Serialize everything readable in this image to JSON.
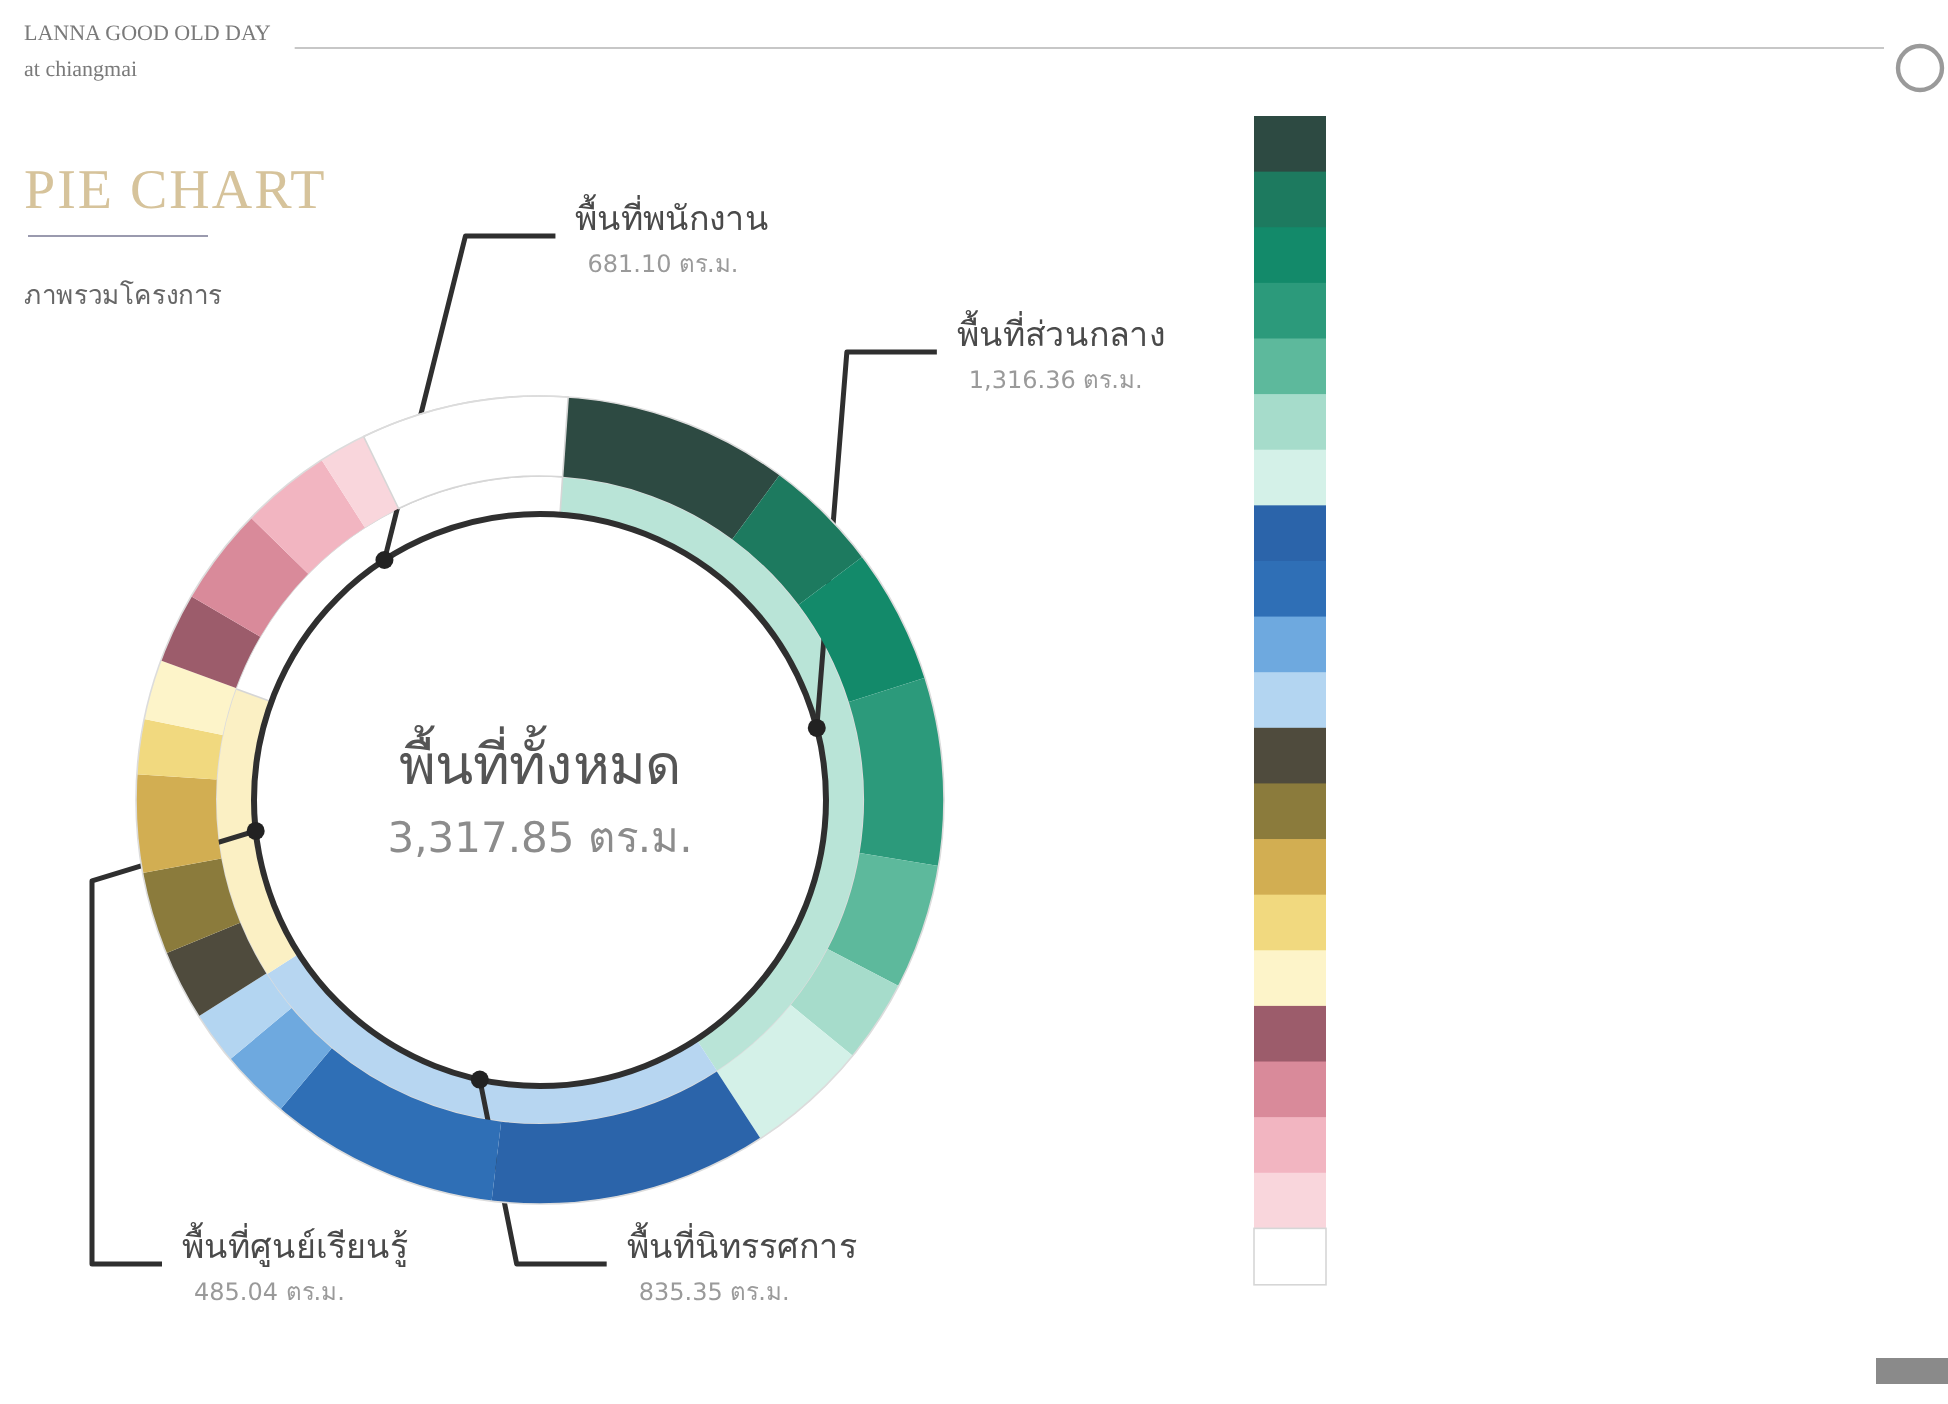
{
  "chart_data": [
    {
      "type": "donut",
      "title": "PIE CHART",
      "subtitle": "ภาพรวมโครงการ",
      "annotations": [
        "LANNA GOOD OLD DAY",
        "at chiangmai",
        "พื้นที่ทั้งหมด",
        "3,317.85 ตร.ม."
      ],
      "categories": [
        "พื้นที่ส่วนกลาง",
        "พื้นที่นิทรรศการ",
        "พื้นที่ศูนย์เรียนรู้",
        "พื้นที่พนักงาน"
      ],
      "values": [
        1316.36,
        835.35,
        485.04,
        681.1
      ],
      "value_labels": [
        "1,316.36 ตร.ม.",
        "835.35 ตร.ม.",
        "485.04 ตร.ม.",
        "681.10 ตร.ม."
      ],
      "colors": [
        "#b9e4d7",
        "#b7d6f1",
        "#fbf0c4",
        "#ffffff"
      ]
    },
    {
      "type": "donut",
      "categories": [
        null,
        null,
        null,
        null,
        null,
        null,
        null,
        null,
        null,
        null,
        null,
        null,
        null,
        null,
        null,
        null,
        null,
        null,
        null,
        null,
        null
      ],
      "values": [
        9.0,
        4.6,
        5.4,
        7.5,
        5.0,
        3.3,
        4.9,
        11.1,
        9.2,
        2.8,
        2.1,
        2.8,
        3.3,
        3.9,
        2.2,
        2.4,
        2.8,
        3.9,
        3.6,
        1.9,
        8.3
      ],
      "colors": [
        "#2d4a42",
        "#1d7a5f",
        "#138a6a",
        "#2c9a7b",
        "#5db99c",
        "#a6dccb",
        "#d4f1e8",
        "#2b64aa",
        "#2f6fb6",
        "#6ea9df",
        "#b3d5f1",
        "#4f4b3d",
        "#8b7b3c",
        "#d2ae52",
        "#f1d97f",
        "#fdf4c9",
        "#9c5c6b",
        "#d98a9a",
        "#f2b5c1",
        "#f9d6dc",
        "#ffffff"
      ]
    }
  ]
}
